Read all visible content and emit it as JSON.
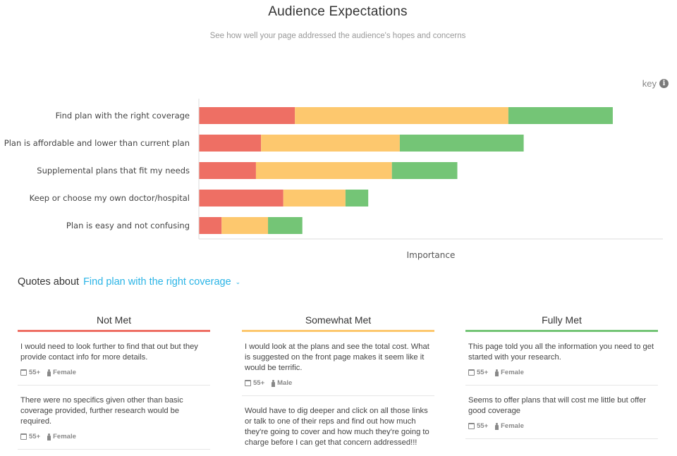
{
  "header": {
    "title": "Audience Expectations",
    "subtitle": "See how well your page addressed the audience's hopes and concerns"
  },
  "key": {
    "label": "key",
    "icon": "info-icon"
  },
  "colors": {
    "not_met": "#ee6f64",
    "somewhat_met": "#fdc86e",
    "fully_met": "#74c576",
    "accent": "#2ab4e6"
  },
  "chart_data": {
    "type": "bar",
    "orientation": "horizontal",
    "stacked": true,
    "title": "",
    "xlabel": "Importance",
    "ylabel": "",
    "xlim": [
      0,
      100
    ],
    "categories": [
      "Find plan with the right coverage",
      "Plan is affordable and lower than current plan",
      "Supplemental plans that fit my needs",
      "Keep or choose my own doctor/hospital",
      "Plan is easy and not confusing"
    ],
    "series": [
      {
        "name": "Not Met",
        "color": "#ee6f64",
        "values": [
          20.7,
          13.4,
          12.3,
          18.2,
          4.9
        ]
      },
      {
        "name": "Somewhat Met",
        "color": "#fdc86e",
        "values": [
          46.0,
          29.9,
          29.3,
          13.4,
          10.0
        ]
      },
      {
        "name": "Fully Met",
        "color": "#74c576",
        "values": [
          22.5,
          26.7,
          14.1,
          4.9,
          7.4
        ]
      }
    ],
    "grid": false
  },
  "quotes_section": {
    "prefix": "Quotes about",
    "selected": "Find plan with the right coverage",
    "columns": [
      {
        "heading": "Not Met",
        "quotes": [
          {
            "text": "I would need to look further to find that out but they provide contact info for more details.",
            "age": "55+",
            "gender": "Female"
          },
          {
            "text": "There were no specifics given other than basic coverage provided, further research would be required.",
            "age": "55+",
            "gender": "Female"
          }
        ]
      },
      {
        "heading": "Somewhat Met",
        "quotes": [
          {
            "text": "I would look at the plans and see the total cost. What is suggested on the front page makes it seem like it would be terrific.",
            "age": "55+",
            "gender": "Male"
          },
          {
            "text": "Would have to dig deeper and click on all those links or talk to one of their reps and find out how much they're going to cover and how much they're going to charge before I can get that concern addressed!!!",
            "age": "",
            "gender": ""
          }
        ]
      },
      {
        "heading": "Fully Met",
        "quotes": [
          {
            "text": "This page told you all the information you need to get started with your research.",
            "age": "55+",
            "gender": "Female"
          },
          {
            "text": "Seems to offer plans that will cost me little but offer good coverage",
            "age": "55+",
            "gender": "Female"
          }
        ]
      }
    ]
  }
}
